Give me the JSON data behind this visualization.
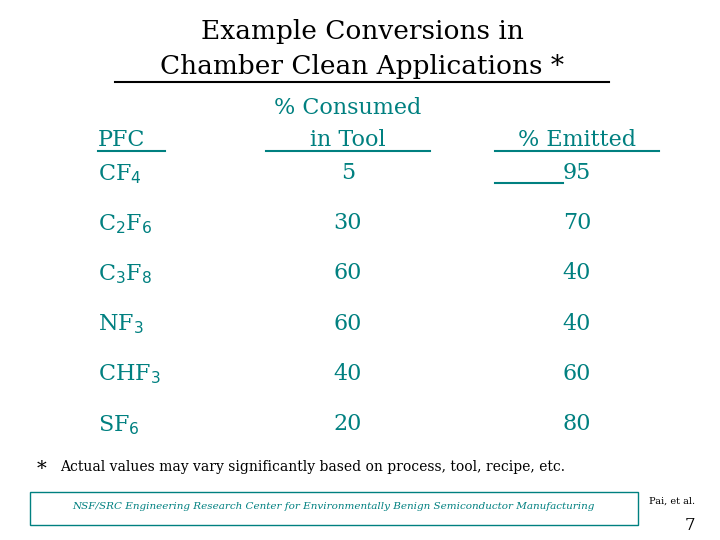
{
  "title_line1": "Example Conversions in",
  "title_line2": "Chamber Clean Applications *",
  "title_color": "#000000",
  "teal_color": "#008080",
  "bg_color": "#ffffff",
  "header_col1": "PFC",
  "header_col2_line1": "% Consumed",
  "header_col2_line2": "in Tool",
  "header_col3": "% Emitted",
  "pfcs": [
    "CF$_4$",
    "C$_2$F$_6$",
    "C$_3$F$_8$",
    "NF$_3$",
    "CHF$_3$",
    "SF$_6$"
  ],
  "consumed": [
    "5",
    "30",
    "60",
    "60",
    "40",
    "20"
  ],
  "emitted": [
    "95",
    "70",
    "40",
    "40",
    "60",
    "80"
  ],
  "footnote_star": "*",
  "footnote_text": "Actual values may vary significantly based on process, tool, recipe, etc.",
  "nsf_text": "NSF/SRC Engineering Research Center for Environmentally Benign Semiconductor Manufacturing",
  "page_ref": "Pai, et al.",
  "page_num": "7"
}
